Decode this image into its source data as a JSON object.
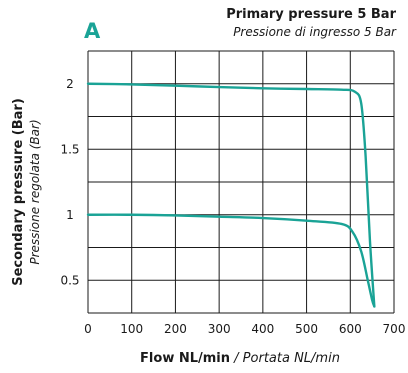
{
  "colors": {
    "accent": "#1aa396",
    "grid": "#1a1a1a",
    "text": "#1a1a1a"
  },
  "panel_label": "A",
  "chart_data": {
    "type": "line",
    "title": "Primary pressure 5 Bar",
    "subtitle": "Pressione di ingresso 5 Bar",
    "xlabel": "Flow NL/min",
    "xlabel_it": " / Portata NL/min",
    "ylabel": "Secondary pressure (Bar)",
    "ylabel_it": "Pressione regolata (Bar)",
    "xlim": [
      0,
      700
    ],
    "ylim": [
      0.25,
      2.25
    ],
    "x_ticks": [
      0,
      100,
      200,
      300,
      400,
      500,
      600,
      700
    ],
    "y_ticks": [
      0.5,
      1,
      1.5,
      2
    ],
    "y_tick_labels": [
      "0.5",
      "1",
      "1.5",
      "2"
    ],
    "grid": true,
    "series": [
      {
        "x": [
          0,
          100,
          200,
          300,
          400,
          500,
          580,
          610,
          625,
          635,
          645,
          655
        ],
        "y": [
          2.0,
          1.995,
          1.985,
          1.975,
          1.965,
          1.96,
          1.955,
          1.94,
          1.85,
          1.45,
          0.8,
          0.3
        ]
      },
      {
        "x": [
          0,
          100,
          200,
          300,
          400,
          500,
          580,
          605,
          625,
          640,
          650,
          655
        ],
        "y": [
          1.0,
          1.0,
          0.995,
          0.985,
          0.975,
          0.955,
          0.93,
          0.87,
          0.72,
          0.5,
          0.35,
          0.3
        ]
      }
    ]
  }
}
